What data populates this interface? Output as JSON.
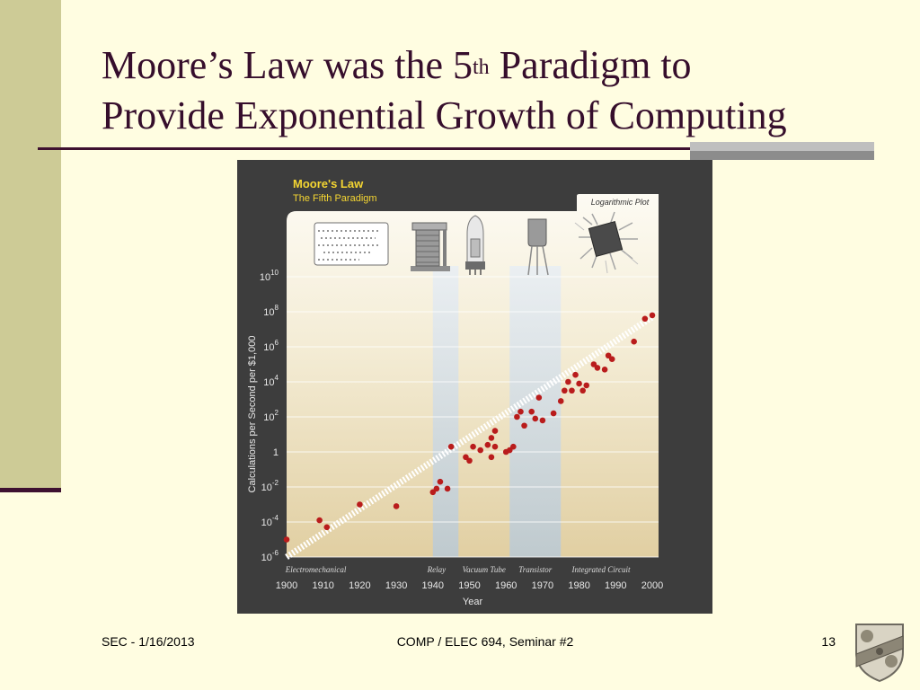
{
  "slide": {
    "title_part1": "Moore’s Law was the 5",
    "title_sup": "th",
    "title_part2": " Paradigm to",
    "title_line2": "Provide Exponential Growth of Computing"
  },
  "footer": {
    "left": "SEC - 1/16/2013",
    "center": "COMP / ELEC 694, Seminar #2",
    "page_number": "13"
  },
  "colors": {
    "background": "#fffde1",
    "title": "#360e2c",
    "accent_bar": "#cdcb96",
    "rule": "#3e1130",
    "figure_bg": "#3d3d3d",
    "heading_yellow": "#f5d632",
    "point": "#b91c1c"
  },
  "chart_data": {
    "type": "scatter",
    "title": "Moore's Law",
    "subtitle": "The Fifth Paradigm",
    "annotation": "Logarithmic Plot",
    "xlabel": "Year",
    "ylabel": "Calculations per Second per $1,000",
    "xlim": [
      1900,
      2000
    ],
    "ylim_exponent": [
      -6,
      10
    ],
    "log_scale": true,
    "x_ticks": [
      "1900",
      "1910",
      "1920",
      "1930",
      "1940",
      "1950",
      "1960",
      "1970",
      "1980",
      "1990",
      "2000"
    ],
    "y_ticks": [
      {
        "exp": 10,
        "base": "10",
        "sup": "10"
      },
      {
        "exp": 8,
        "base": "10",
        "sup": "8"
      },
      {
        "exp": 6,
        "base": "10",
        "sup": "6"
      },
      {
        "exp": 4,
        "base": "10",
        "sup": "4"
      },
      {
        "exp": 2,
        "base": "10",
        "sup": "2"
      },
      {
        "exp": 0,
        "base": "1",
        "sup": ""
      },
      {
        "exp": -2,
        "base": "10",
        "sup": "-2"
      },
      {
        "exp": -4,
        "base": "10",
        "sup": "-4"
      },
      {
        "exp": -6,
        "base": "10",
        "sup": "-6"
      }
    ],
    "paradigms": [
      {
        "name": "Electromechanical",
        "start": 1900,
        "end": 1940,
        "shaded": false
      },
      {
        "name": "Relay",
        "start": 1940,
        "end": 1947,
        "shaded": true
      },
      {
        "name": "Vacuum Tube",
        "start": 1947,
        "end": 1961,
        "shaded": false
      },
      {
        "name": "Transistor",
        "start": 1961,
        "end": 1975,
        "shaded": true
      },
      {
        "name": "Integrated Circuit",
        "start": 1975,
        "end": 2000,
        "shaded": false
      }
    ],
    "paradigm_label_x": [
      1908,
      1941,
      1954,
      1968,
      1986
    ],
    "trend": {
      "x": [
        1900,
        2000
      ],
      "y_exp": [
        -6,
        7.7
      ]
    },
    "points": [
      {
        "x": 1900,
        "y_exp": -5.0
      },
      {
        "x": 1909,
        "y_exp": -3.9
      },
      {
        "x": 1911,
        "y_exp": -4.3
      },
      {
        "x": 1920,
        "y_exp": -3.0
      },
      {
        "x": 1930,
        "y_exp": -3.1
      },
      {
        "x": 1940,
        "y_exp": -2.3
      },
      {
        "x": 1941,
        "y_exp": -2.1
      },
      {
        "x": 1942,
        "y_exp": -1.7
      },
      {
        "x": 1944,
        "y_exp": -2.1
      },
      {
        "x": 1945,
        "y_exp": 0.3
      },
      {
        "x": 1949,
        "y_exp": -0.3
      },
      {
        "x": 1950,
        "y_exp": -0.5
      },
      {
        "x": 1951,
        "y_exp": 0.3
      },
      {
        "x": 1953,
        "y_exp": 0.1
      },
      {
        "x": 1955,
        "y_exp": 0.4
      },
      {
        "x": 1956,
        "y_exp": 0.8
      },
      {
        "x": 1956,
        "y_exp": -0.3
      },
      {
        "x": 1957,
        "y_exp": 1.2
      },
      {
        "x": 1957,
        "y_exp": 0.3
      },
      {
        "x": 1960,
        "y_exp": 0.0
      },
      {
        "x": 1961,
        "y_exp": 0.1
      },
      {
        "x": 1962,
        "y_exp": 0.3
      },
      {
        "x": 1963,
        "y_exp": 2.0
      },
      {
        "x": 1964,
        "y_exp": 2.3
      },
      {
        "x": 1965,
        "y_exp": 1.5
      },
      {
        "x": 1967,
        "y_exp": 2.3
      },
      {
        "x": 1968,
        "y_exp": 1.9
      },
      {
        "x": 1969,
        "y_exp": 3.1
      },
      {
        "x": 1970,
        "y_exp": 1.8
      },
      {
        "x": 1973,
        "y_exp": 2.2
      },
      {
        "x": 1975,
        "y_exp": 2.9
      },
      {
        "x": 1976,
        "y_exp": 3.5
      },
      {
        "x": 1977,
        "y_exp": 4.0
      },
      {
        "x": 1978,
        "y_exp": 3.5
      },
      {
        "x": 1979,
        "y_exp": 4.4
      },
      {
        "x": 1980,
        "y_exp": 3.9
      },
      {
        "x": 1981,
        "y_exp": 3.5
      },
      {
        "x": 1982,
        "y_exp": 3.8
      },
      {
        "x": 1984,
        "y_exp": 5.0
      },
      {
        "x": 1985,
        "y_exp": 4.8
      },
      {
        "x": 1987,
        "y_exp": 4.7
      },
      {
        "x": 1988,
        "y_exp": 5.5
      },
      {
        "x": 1989,
        "y_exp": 5.3
      },
      {
        "x": 1995,
        "y_exp": 6.3
      },
      {
        "x": 1998,
        "y_exp": 7.6
      },
      {
        "x": 2000,
        "y_exp": 7.8
      }
    ]
  }
}
